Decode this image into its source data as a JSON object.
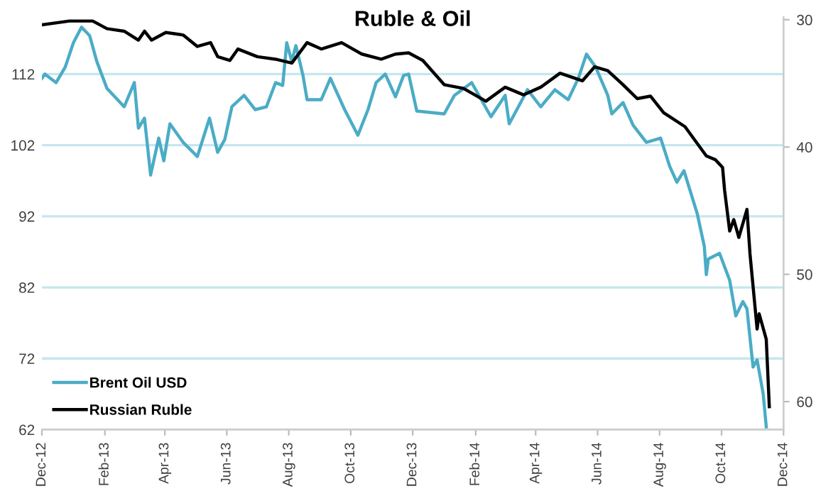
{
  "chart_data": {
    "type": "line",
    "title": "Ruble & Oil",
    "xlim": [
      "2012-12-01",
      "2014-12-01"
    ],
    "xticks": [
      {
        "value": "2012-12-01",
        "label": "Dec-12"
      },
      {
        "value": "2013-02-01",
        "label": "Feb-13"
      },
      {
        "value": "2013-04-01",
        "label": "Apr-13"
      },
      {
        "value": "2013-06-01",
        "label": "Jun-13"
      },
      {
        "value": "2013-08-01",
        "label": "Aug-13"
      },
      {
        "value": "2013-10-01",
        "label": "Oct-13"
      },
      {
        "value": "2013-12-01",
        "label": "Dec-13"
      },
      {
        "value": "2014-02-01",
        "label": "Feb-14"
      },
      {
        "value": "2014-04-01",
        "label": "Apr-14"
      },
      {
        "value": "2014-06-01",
        "label": "Jun-14"
      },
      {
        "value": "2014-08-01",
        "label": "Aug-14"
      },
      {
        "value": "2014-10-01",
        "label": "Oct-14"
      },
      {
        "value": "2014-12-01",
        "label": "Dec-14"
      }
    ],
    "ylim": [
      62,
      120
    ],
    "yticks": [
      62,
      72,
      82,
      92,
      102,
      112
    ],
    "y2lim": [
      62.2,
      29.8
    ],
    "y2ticks": [
      30,
      40,
      50,
      60
    ],
    "grid": "y",
    "legend": "bottom left",
    "series": [
      {
        "name": "Brent Oil USD",
        "color": "#4bacc6",
        "x": [
          "2012-12-01",
          "2012-12-04",
          "2012-12-15",
          "2012-12-24",
          "2013-01-01",
          "2013-01-09",
          "2013-01-17",
          "2013-01-24",
          "2013-02-03",
          "2013-02-20",
          "2013-03-02",
          "2013-03-06",
          "2013-03-12",
          "2013-03-18",
          "2013-03-26",
          "2013-03-31",
          "2013-04-06",
          "2013-04-19",
          "2013-05-03",
          "2013-05-15",
          "2013-05-23",
          "2013-05-30",
          "2013-06-06",
          "2013-06-18",
          "2013-06-29",
          "2013-07-10",
          "2013-07-19",
          "2013-07-26",
          "2013-07-30",
          "2013-08-04",
          "2013-08-08",
          "2013-08-15",
          "2013-08-19",
          "2013-09-02",
          "2013-09-11",
          "2013-09-25",
          "2013-10-08",
          "2013-10-18",
          "2013-10-26",
          "2013-11-04",
          "2013-11-14",
          "2013-11-22",
          "2013-11-27",
          "2013-12-05",
          "2014-01-01",
          "2014-01-11",
          "2014-01-28",
          "2014-02-16",
          "2014-03-02",
          "2014-03-06",
          "2014-03-24",
          "2014-04-06",
          "2014-04-20",
          "2014-05-03",
          "2014-05-13",
          "2014-05-21",
          "2014-05-30",
          "2014-06-11",
          "2014-06-15",
          "2014-06-26",
          "2014-07-06",
          "2014-07-19",
          "2014-08-02",
          "2014-08-11",
          "2014-08-18",
          "2014-08-25",
          "2014-09-07",
          "2014-09-14",
          "2014-09-16",
          "2014-09-18",
          "2014-09-29",
          "2014-10-09",
          "2014-10-15",
          "2014-10-22",
          "2014-10-26",
          "2014-11-01",
          "2014-11-05",
          "2014-11-11",
          "2014-11-14"
        ],
        "values": [
          111.4,
          112,
          110.8,
          113,
          116.4,
          118.6,
          117.4,
          113.8,
          110,
          107.4,
          110.8,
          104.4,
          105.8,
          97.8,
          103,
          99.8,
          105,
          102.4,
          100.4,
          105.8,
          101,
          102.8,
          107.4,
          109,
          107,
          107.4,
          110.8,
          110.4,
          116.4,
          113.8,
          116,
          111.8,
          108.4,
          108.4,
          111.4,
          107,
          103.4,
          107,
          110.8,
          112,
          108.8,
          111.8,
          112,
          106.8,
          106.4,
          109,
          110.8,
          106,
          109,
          105,
          109.8,
          107.4,
          109.8,
          108.4,
          111.4,
          114.8,
          113,
          109,
          106.4,
          108,
          104.8,
          102.4,
          103,
          99,
          96.8,
          98.4,
          92.4,
          87.8,
          83.8,
          86,
          86.8,
          83,
          78,
          80,
          79,
          70.8,
          71.8,
          67,
          62.4
        ]
      },
      {
        "name": "Russian Ruble",
        "color": "#000000",
        "axis": "y2",
        "x": [
          "2012-12-01",
          "2012-12-28",
          "2013-01-20",
          "2013-02-03",
          "2013-02-20",
          "2013-03-06",
          "2013-03-12",
          "2013-03-19",
          "2013-04-02",
          "2013-04-19",
          "2013-05-03",
          "2013-05-16",
          "2013-05-23",
          "2013-06-04",
          "2013-06-12",
          "2013-07-01",
          "2013-07-19",
          "2013-08-04",
          "2013-08-19",
          "2013-09-02",
          "2013-09-22",
          "2013-10-12",
          "2013-10-31",
          "2013-11-14",
          "2013-11-27",
          "2013-12-11",
          "2014-01-01",
          "2014-01-20",
          "2014-02-11",
          "2014-03-02",
          "2014-03-20",
          "2014-04-06",
          "2014-04-25",
          "2014-05-17",
          "2014-05-29",
          "2014-06-11",
          "2014-06-26",
          "2014-07-10",
          "2014-07-23",
          "2014-08-05",
          "2014-08-26",
          "2014-09-16",
          "2014-09-25",
          "2014-10-02",
          "2014-10-04",
          "2014-10-09",
          "2014-10-13",
          "2014-10-18",
          "2014-10-26",
          "2014-10-29",
          "2014-11-05",
          "2014-11-07",
          "2014-11-14",
          "2014-11-17"
        ],
        "values": [
          30.4,
          30.1,
          30.1,
          30.7,
          30.9,
          31.6,
          30.9,
          31.6,
          31,
          31.2,
          32.1,
          31.8,
          32.9,
          33.2,
          32.3,
          32.9,
          33.1,
          33.4,
          31.8,
          32.3,
          31.8,
          32.7,
          33.1,
          32.7,
          32.6,
          33.2,
          35.1,
          35.4,
          36.4,
          35.3,
          35.9,
          35.3,
          34.2,
          34.8,
          33.7,
          34,
          35.1,
          36.2,
          36,
          37.3,
          38.4,
          40.7,
          41,
          41.6,
          43.4,
          46.6,
          45.7,
          47.1,
          44.9,
          48.4,
          54.3,
          53.1,
          55.1,
          60.4
        ]
      }
    ]
  }
}
